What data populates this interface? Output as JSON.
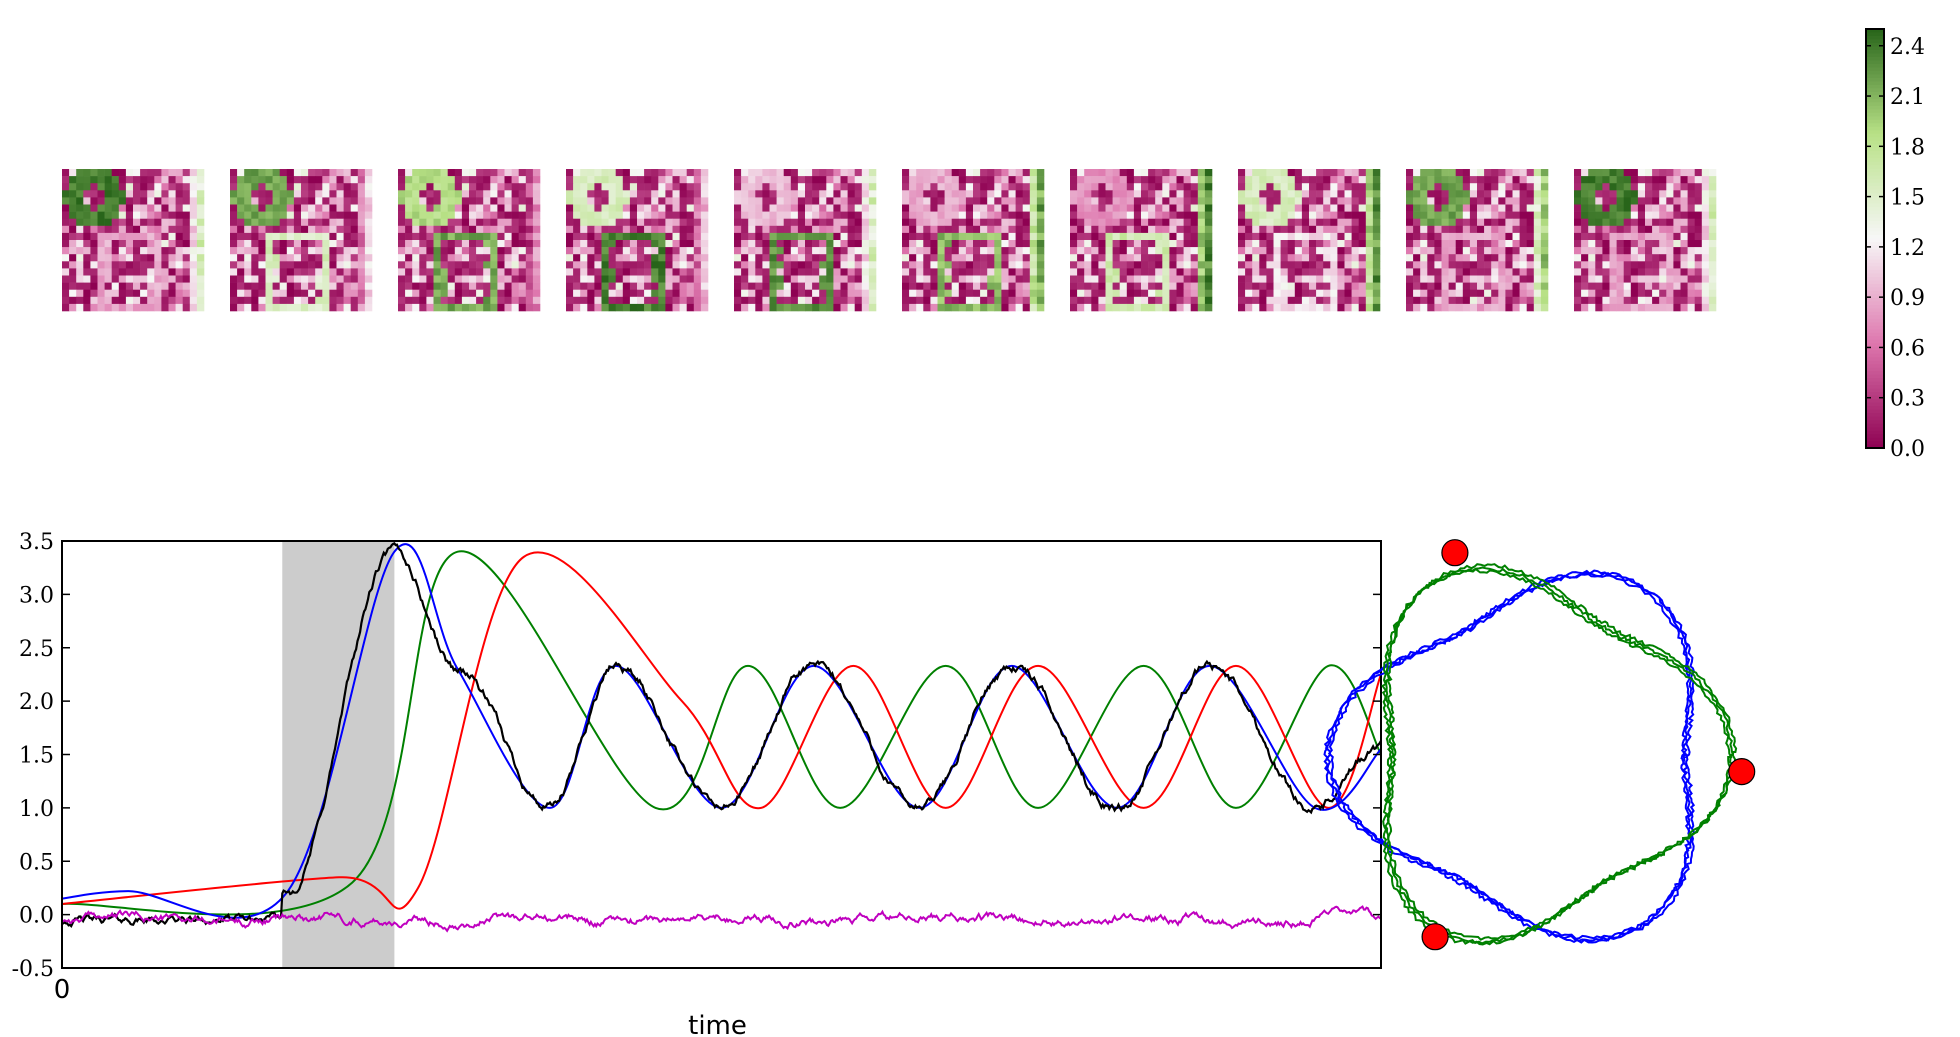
{
  "chart_data": [
    {
      "type": "heatmap",
      "panels": 10,
      "grid": [
        20,
        20
      ],
      "colormap": {
        "low": "#8e0152",
        "mid_low": "#de77ae",
        "mid": "#f7f7f7",
        "mid_high": "#b8e186",
        "high": "#276419"
      },
      "colorbar": {
        "ticks": [
          "0.0",
          "0.3",
          "0.6",
          "0.9",
          "1.2",
          "1.5",
          "1.8",
          "2.1",
          "2.4"
        ],
        "range": [
          0.0,
          2.5
        ]
      },
      "ring_values": [
        2.4,
        2.2,
        1.9,
        1.6,
        1.0,
        0.9,
        0.8,
        1.6,
        2.2,
        2.4
      ],
      "square_values": [
        0.9,
        1.6,
        2.2,
        2.4,
        2.3,
        2.1,
        1.7,
        1.2,
        0.9,
        0.9
      ],
      "strip_values": [
        1.6,
        1.1,
        0.8,
        1.0,
        1.6,
        2.2,
        2.4,
        2.3,
        2.0,
        1.6
      ]
    },
    {
      "type": "line",
      "xlabel": "time",
      "ylabel": "",
      "ylim": [
        -0.5,
        3.5
      ],
      "yticks": [
        "-0.5",
        "0.0",
        "0.5",
        "1.0",
        "1.5",
        "2.0",
        "2.5",
        "3.0",
        "3.5"
      ],
      "xtick_label": "0",
      "grid": false,
      "shaded_interval": [
        0.167,
        0.252
      ],
      "shaded_color": "#cccccc",
      "series": [
        {
          "color": "#0000ff",
          "description_points": [
            [
              0.0,
              0.15
            ],
            [
              0.05,
              0.22
            ],
            [
              0.17,
              0.2
            ],
            [
              0.252,
              3.4
            ],
            [
              0.3,
              2.3
            ],
            [
              0.37,
              1.0
            ],
            [
              0.42,
              2.33
            ],
            [
              0.5,
              1.0
            ],
            [
              0.57,
              2.33
            ],
            [
              0.65,
              1.0
            ],
            [
              0.72,
              2.33
            ],
            [
              0.8,
              1.0
            ],
            [
              0.87,
              2.33
            ],
            [
              0.95,
              1.0
            ],
            [
              1.0,
              1.55
            ]
          ]
        },
        {
          "color": "#008000",
          "description_points": [
            [
              0.0,
              0.1
            ],
            [
              0.22,
              0.3
            ],
            [
              0.3,
              3.4
            ],
            [
              0.45,
              1.0
            ],
            [
              0.52,
              2.33
            ],
            [
              0.59,
              1.0
            ],
            [
              0.67,
              2.33
            ],
            [
              0.74,
              1.0
            ],
            [
              0.82,
              2.33
            ],
            [
              0.89,
              1.0
            ],
            [
              0.96,
              2.33
            ],
            [
              1.0,
              1.5
            ]
          ]
        },
        {
          "color": "#ff0000",
          "description_points": [
            [
              0.0,
              0.1
            ],
            [
              0.21,
              0.35
            ],
            [
              0.27,
              0.25
            ],
            [
              0.35,
              3.35
            ],
            [
              0.47,
              2.0
            ],
            [
              0.53,
              1.0
            ],
            [
              0.6,
              2.33
            ],
            [
              0.67,
              1.0
            ],
            [
              0.74,
              2.33
            ],
            [
              0.82,
              1.0
            ],
            [
              0.89,
              2.33
            ],
            [
              0.96,
              1.0
            ],
            [
              1.0,
              2.25
            ]
          ]
        },
        {
          "color": "#000000",
          "description": "noisy trace following the blue series"
        },
        {
          "color": "#bf00bf",
          "description": "noise around 0.0"
        }
      ]
    },
    {
      "type": "phase-portrait",
      "curves": [
        {
          "color": "#0000ff"
        },
        {
          "color": "#008000"
        }
      ],
      "marker_color": "#ff0000",
      "markers": 3
    }
  ]
}
